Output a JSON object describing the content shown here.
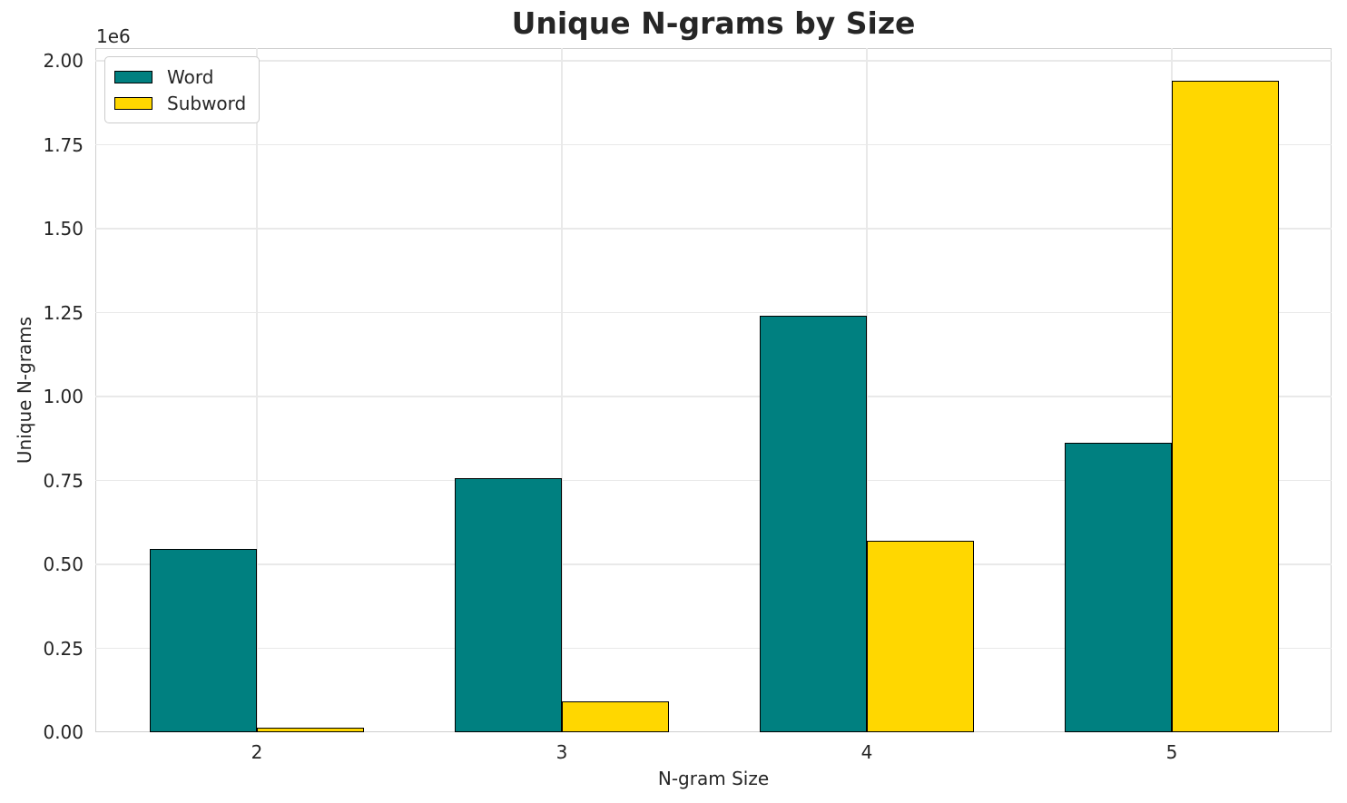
{
  "chart_data": {
    "type": "bar",
    "title": "Unique N-grams by Size",
    "xlabel": "N-gram Size",
    "ylabel": "Unique N-grams",
    "y_offset_label": "1e6",
    "categories": [
      "2",
      "3",
      "4",
      "5"
    ],
    "series": [
      {
        "name": "Word",
        "color": "#008080",
        "values": [
          545000,
          756000,
          1240000,
          862000
        ]
      },
      {
        "name": "Subword",
        "color": "#FFD700",
        "values": [
          13000,
          92000,
          570000,
          1940000
        ]
      }
    ],
    "bar_edge_color": "#000000",
    "ylim": [
      0,
      2038000
    ],
    "yticks": [
      {
        "value": 0,
        "label": "0.00"
      },
      {
        "value": 250000,
        "label": "0.25"
      },
      {
        "value": 500000,
        "label": "0.50"
      },
      {
        "value": 750000,
        "label": "0.75"
      },
      {
        "value": 1000000,
        "label": "1.00"
      },
      {
        "value": 1250000,
        "label": "1.25"
      },
      {
        "value": 1500000,
        "label": "1.50"
      },
      {
        "value": 1750000,
        "label": "1.75"
      },
      {
        "value": 2000000,
        "label": "2.00"
      }
    ],
    "grid": true,
    "legend_position": "upper-left"
  },
  "style": {
    "text_color": "#262626",
    "grid_color": "#e9e9e9",
    "spine_color": "#cfcfcf",
    "background": "#ffffff"
  }
}
